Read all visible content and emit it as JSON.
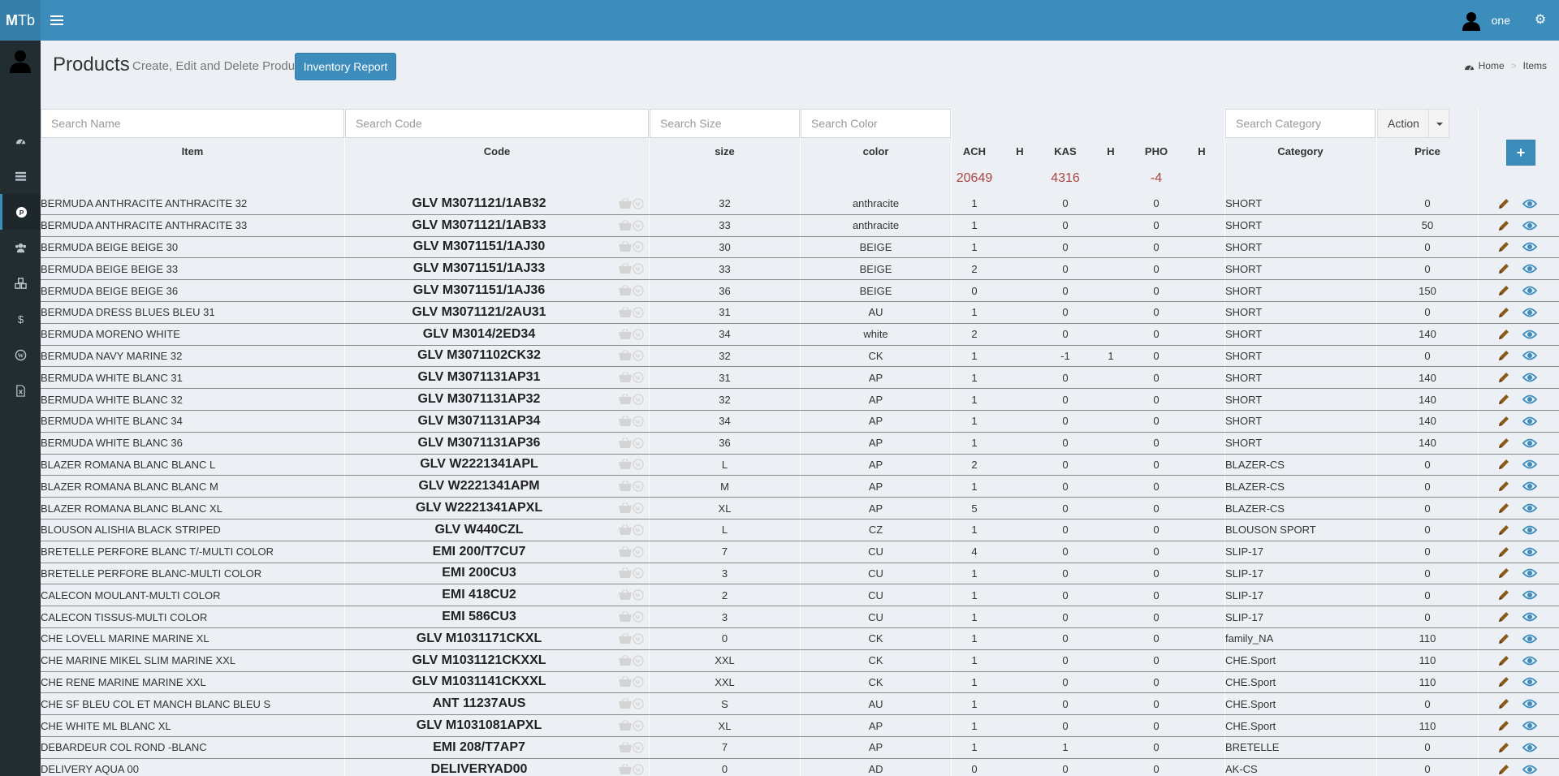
{
  "app": {
    "logo_bold": "M",
    "logo_rest": "Tb"
  },
  "header": {
    "user_name": "one"
  },
  "sidebar": {
    "items": [
      {
        "name": "dashboard-icon"
      },
      {
        "name": "list-icon"
      },
      {
        "name": "products-icon",
        "active": true
      },
      {
        "name": "users-icon"
      },
      {
        "name": "cubes-icon"
      },
      {
        "name": "dollar-icon"
      },
      {
        "name": "wordpress-icon"
      },
      {
        "name": "excel-file-icon"
      }
    ]
  },
  "page": {
    "title": "Products",
    "subtitle": "Create, Edit and Delete Products",
    "inventory_button": "Inventory Report",
    "breadcrumb": {
      "home": "Home",
      "current": "Items"
    }
  },
  "filters": {
    "name_placeholder": "Search Name",
    "code_placeholder": "Search Code",
    "size_placeholder": "Search Size",
    "color_placeholder": "Search Color",
    "category_placeholder": "Search Category",
    "action_label": "Action"
  },
  "columns": {
    "item": "Item",
    "code": "Code",
    "size": "size",
    "color": "color",
    "ach": "ACH",
    "h1": "H",
    "kas": "KAS",
    "h2": "H",
    "pho": "PHO",
    "h3": "H",
    "category": "Category",
    "price": "Price",
    "add": "+"
  },
  "totals": {
    "ach": "20649",
    "kas": "4316",
    "pho": "-4"
  },
  "rows": [
    {
      "item": "BERMUDA ANTHRACITE ANTHRACITE 32",
      "code": "GLV M3071121/1AB32",
      "size": "32",
      "color": "anthracite",
      "ach": "1",
      "h1": "",
      "kas": "0",
      "h2": "",
      "pho": "0",
      "h3": "",
      "category": "SHORT",
      "price": "0"
    },
    {
      "item": "BERMUDA ANTHRACITE ANTHRACITE 33",
      "code": "GLV M3071121/1AB33",
      "size": "33",
      "color": "anthracite",
      "ach": "1",
      "h1": "",
      "kas": "0",
      "h2": "",
      "pho": "0",
      "h3": "",
      "category": "SHORT",
      "price": "50"
    },
    {
      "item": "BERMUDA BEIGE BEIGE 30",
      "code": "GLV M3071151/1AJ30",
      "size": "30",
      "color": "BEIGE",
      "ach": "1",
      "h1": "",
      "kas": "0",
      "h2": "",
      "pho": "0",
      "h3": "",
      "category": "SHORT",
      "price": "0"
    },
    {
      "item": "BERMUDA BEIGE BEIGE 33",
      "code": "GLV M3071151/1AJ33",
      "size": "33",
      "color": "BEIGE",
      "ach": "2",
      "h1": "",
      "kas": "0",
      "h2": "",
      "pho": "0",
      "h3": "",
      "category": "SHORT",
      "price": "0"
    },
    {
      "item": "BERMUDA BEIGE BEIGE 36",
      "code": "GLV M3071151/1AJ36",
      "size": "36",
      "color": "BEIGE",
      "ach": "0",
      "h1": "",
      "kas": "0",
      "h2": "",
      "pho": "0",
      "h3": "",
      "category": "SHORT",
      "price": "150"
    },
    {
      "item": "BERMUDA DRESS BLUES BLEU 31",
      "code": "GLV M3071121/2AU31",
      "size": "31",
      "color": "AU",
      "ach": "1",
      "h1": "",
      "kas": "0",
      "h2": "",
      "pho": "0",
      "h3": "",
      "category": "SHORT",
      "price": "0"
    },
    {
      "item": "BERMUDA MORENO WHITE",
      "code": "GLV M3014/2ED34",
      "size": "34",
      "color": "white",
      "ach": "2",
      "h1": "",
      "kas": "0",
      "h2": "",
      "pho": "0",
      "h3": "",
      "category": "SHORT",
      "price": "140"
    },
    {
      "item": "BERMUDA NAVY MARINE 32",
      "code": "GLV M3071102CK32",
      "size": "32",
      "color": "CK",
      "ach": "1",
      "h1": "",
      "kas": "-1",
      "h2": "1",
      "pho": "0",
      "h3": "",
      "category": "SHORT",
      "price": "0"
    },
    {
      "item": "BERMUDA WHITE BLANC 31",
      "code": "GLV M3071131AP31",
      "size": "31",
      "color": "AP",
      "ach": "1",
      "h1": "",
      "kas": "0",
      "h2": "",
      "pho": "0",
      "h3": "",
      "category": "SHORT",
      "price": "140"
    },
    {
      "item": "BERMUDA WHITE BLANC 32",
      "code": "GLV M3071131AP32",
      "size": "32",
      "color": "AP",
      "ach": "1",
      "h1": "",
      "kas": "0",
      "h2": "",
      "pho": "0",
      "h3": "",
      "category": "SHORT",
      "price": "140"
    },
    {
      "item": "BERMUDA WHITE BLANC 34",
      "code": "GLV M3071131AP34",
      "size": "34",
      "color": "AP",
      "ach": "1",
      "h1": "",
      "kas": "0",
      "h2": "",
      "pho": "0",
      "h3": "",
      "category": "SHORT",
      "price": "140"
    },
    {
      "item": "BERMUDA WHITE BLANC 36",
      "code": "GLV M3071131AP36",
      "size": "36",
      "color": "AP",
      "ach": "1",
      "h1": "",
      "kas": "0",
      "h2": "",
      "pho": "0",
      "h3": "",
      "category": "SHORT",
      "price": "140"
    },
    {
      "item": "BLAZER ROMANA BLANC BLANC L",
      "code": "GLV W2221341APL",
      "size": "L",
      "color": "AP",
      "ach": "2",
      "h1": "",
      "kas": "0",
      "h2": "",
      "pho": "0",
      "h3": "",
      "category": "BLAZER-CS",
      "price": "0"
    },
    {
      "item": "BLAZER ROMANA BLANC BLANC M",
      "code": "GLV W2221341APM",
      "size": "M",
      "color": "AP",
      "ach": "1",
      "h1": "",
      "kas": "0",
      "h2": "",
      "pho": "0",
      "h3": "",
      "category": "BLAZER-CS",
      "price": "0"
    },
    {
      "item": "BLAZER ROMANA BLANC BLANC XL",
      "code": "GLV W2221341APXL",
      "size": "XL",
      "color": "AP",
      "ach": "5",
      "h1": "",
      "kas": "0",
      "h2": "",
      "pho": "0",
      "h3": "",
      "category": "BLAZER-CS",
      "price": "0"
    },
    {
      "item": "BLOUSON ALISHIA BLACK STRIPED",
      "code": "GLV W440CZL",
      "size": "L",
      "color": "CZ",
      "ach": "1",
      "h1": "",
      "kas": "0",
      "h2": "",
      "pho": "0",
      "h3": "",
      "category": "BLOUSON SPORT",
      "price": "0"
    },
    {
      "item": "BRETELLE PERFORE BLANC T/-MULTI COLOR",
      "code": "EMI 200/T7CU7",
      "size": "7",
      "color": "CU",
      "ach": "4",
      "h1": "",
      "kas": "0",
      "h2": "",
      "pho": "0",
      "h3": "",
      "category": "SLIP-17",
      "price": "0"
    },
    {
      "item": "BRETELLE PERFORE BLANC-MULTI COLOR",
      "code": "EMI 200CU3",
      "size": "3",
      "color": "CU",
      "ach": "1",
      "h1": "",
      "kas": "0",
      "h2": "",
      "pho": "0",
      "h3": "",
      "category": "SLIP-17",
      "price": "0"
    },
    {
      "item": "CALECON MOULANT-MULTI COLOR",
      "code": "EMI 418CU2",
      "size": "2",
      "color": "CU",
      "ach": "1",
      "h1": "",
      "kas": "0",
      "h2": "",
      "pho": "0",
      "h3": "",
      "category": "SLIP-17",
      "price": "0"
    },
    {
      "item": "CALECON TISSUS-MULTI COLOR",
      "code": "EMI 586CU3",
      "size": "3",
      "color": "CU",
      "ach": "1",
      "h1": "",
      "kas": "0",
      "h2": "",
      "pho": "0",
      "h3": "",
      "category": "SLIP-17",
      "price": "0"
    },
    {
      "item": "CHE LOVELL MARINE MARINE XL",
      "code": "GLV M1031171CKXL",
      "size": "0",
      "color": "CK",
      "ach": "1",
      "h1": "",
      "kas": "0",
      "h2": "",
      "pho": "0",
      "h3": "",
      "category": "family_NA",
      "price": "110"
    },
    {
      "item": "CHE MARINE MIKEL SLIM MARINE XXL",
      "code": "GLV M1031121CKXXL",
      "size": "XXL",
      "color": "CK",
      "ach": "1",
      "h1": "",
      "kas": "0",
      "h2": "",
      "pho": "0",
      "h3": "",
      "category": "CHE.Sport",
      "price": "110"
    },
    {
      "item": "CHE RENE MARINE MARINE XXL",
      "code": "GLV M1031141CKXXL",
      "size": "XXL",
      "color": "CK",
      "ach": "1",
      "h1": "",
      "kas": "0",
      "h2": "",
      "pho": "0",
      "h3": "",
      "category": "CHE.Sport",
      "price": "110"
    },
    {
      "item": "CHE SF BLEU COL ET MANCH BLANC BLEU S",
      "code": "ANT 11237AUS",
      "size": "S",
      "color": "AU",
      "ach": "1",
      "h1": "",
      "kas": "0",
      "h2": "",
      "pho": "0",
      "h3": "",
      "category": "CHE.Sport",
      "price": "0"
    },
    {
      "item": "CHE WHITE ML BLANC XL",
      "code": "GLV M1031081APXL",
      "size": "XL",
      "color": "AP",
      "ach": "1",
      "h1": "",
      "kas": "0",
      "h2": "",
      "pho": "0",
      "h3": "",
      "category": "CHE.Sport",
      "price": "110"
    },
    {
      "item": "DEBARDEUR COL ROND -BLANC",
      "code": "EMI 208/T7AP7",
      "size": "7",
      "color": "AP",
      "ach": "1",
      "h1": "",
      "kas": "1",
      "h2": "",
      "pho": "0",
      "h3": "",
      "category": "BRETELLE",
      "price": "0"
    },
    {
      "item": "DELIVERY AQUA 00",
      "code": "DELIVERYAD00",
      "size": "0",
      "color": "AD",
      "ach": "0",
      "h1": "",
      "kas": "0",
      "h2": "",
      "pho": "0",
      "h3": "",
      "category": "AK-CS",
      "price": "0"
    }
  ]
}
